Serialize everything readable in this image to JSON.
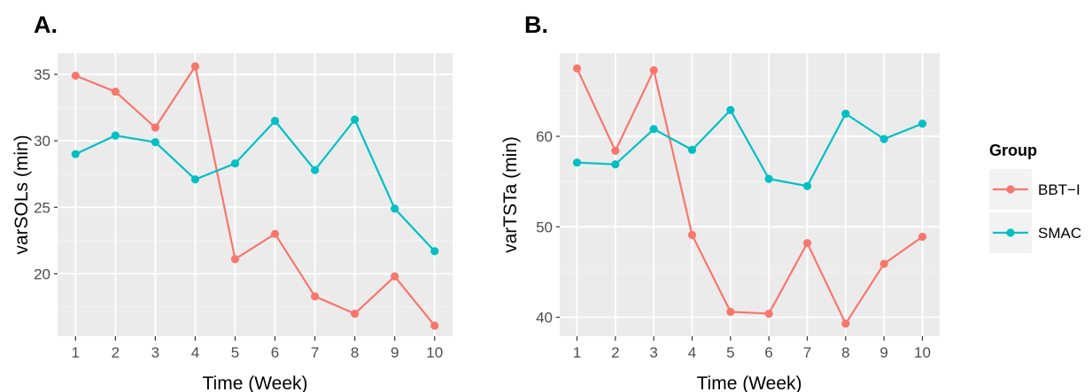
{
  "chart_data": [
    {
      "panel_label": "A.",
      "type": "line",
      "xlabel": "Time (Week)",
      "ylabel": "varSOLs (min)",
      "x": [
        1,
        2,
        3,
        4,
        5,
        6,
        7,
        8,
        9,
        10
      ],
      "xticks": [
        1,
        2,
        3,
        4,
        5,
        6,
        7,
        8,
        9,
        10
      ],
      "xlim": [
        0.55,
        10.45
      ],
      "yticks": [
        20,
        25,
        30,
        35
      ],
      "ylim": [
        15.3,
        36.6
      ],
      "grid": true,
      "series": [
        {
          "name": "BBT−I",
          "values": [
            34.9,
            33.7,
            31.0,
            35.6,
            21.1,
            23.0,
            18.3,
            17.0,
            19.8,
            16.1
          ]
        },
        {
          "name": "SMAC",
          "values": [
            29.0,
            30.4,
            29.9,
            27.1,
            28.3,
            31.5,
            27.8,
            31.6,
            24.9,
            21.7
          ]
        }
      ]
    },
    {
      "panel_label": "B.",
      "type": "line",
      "xlabel": "Time (Week)",
      "ylabel": "varTSTa (min)",
      "x": [
        1,
        2,
        3,
        4,
        5,
        6,
        7,
        8,
        9,
        10
      ],
      "xticks": [
        1,
        2,
        3,
        4,
        5,
        6,
        7,
        8,
        9,
        10
      ],
      "xlim": [
        0.55,
        10.45
      ],
      "yticks": [
        40,
        50,
        60
      ],
      "ylim": [
        37.9,
        69.2
      ],
      "grid": true,
      "series": [
        {
          "name": "BBT−I",
          "values": [
            67.5,
            58.4,
            67.3,
            49.1,
            40.6,
            40.4,
            48.2,
            39.3,
            45.9,
            48.9
          ]
        },
        {
          "name": "SMAC",
          "values": [
            57.1,
            56.9,
            60.8,
            58.5,
            62.9,
            55.3,
            54.5,
            62.5,
            59.7,
            61.4
          ]
        }
      ]
    }
  ],
  "legend": {
    "title": "Group",
    "placement": "right",
    "items": [
      {
        "label": "BBT−I",
        "color": "#F8766D"
      },
      {
        "label": "SMAC",
        "color": "#00BFC4"
      }
    ]
  },
  "colors": {
    "panel_background": "#EBEBEB",
    "grid": "#FFFFFF",
    "series": [
      "#F8766D",
      "#00BFC4"
    ]
  }
}
